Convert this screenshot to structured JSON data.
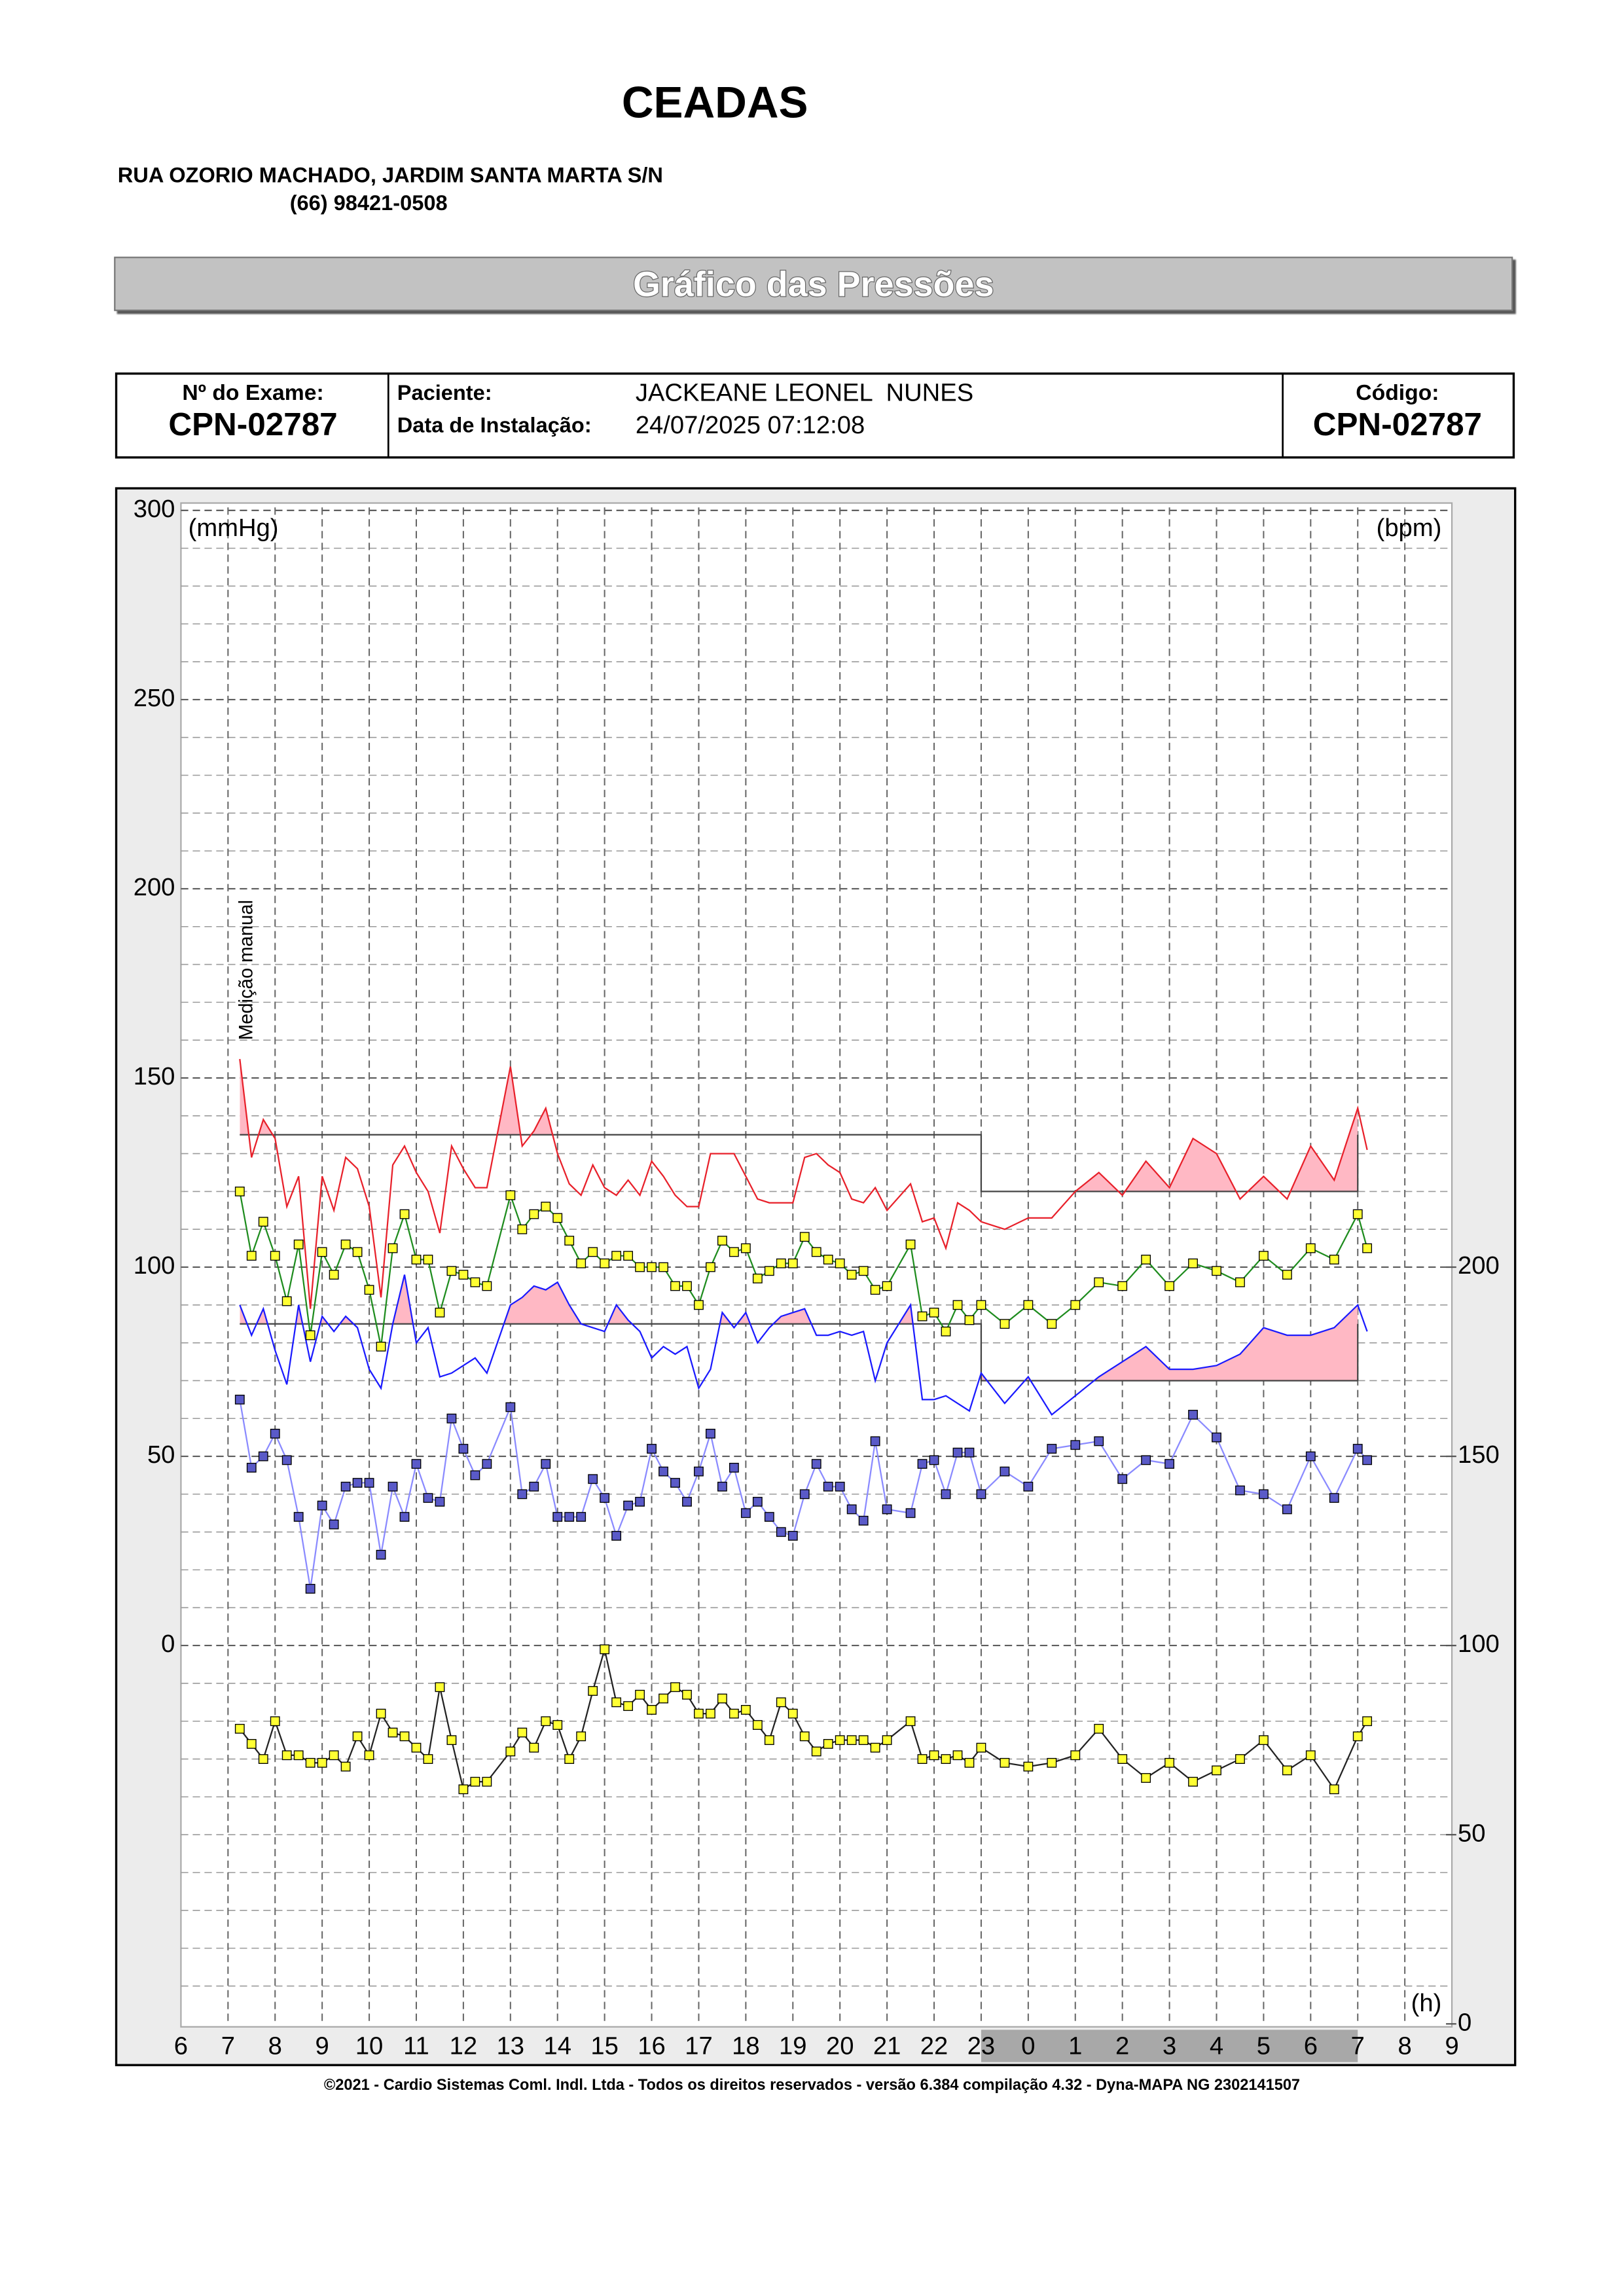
{
  "header": {
    "title": "CEADAS",
    "address": "RUA OZORIO MACHADO, JARDIM SANTA MARTA S/N",
    "phone": "(66) 98421-0508"
  },
  "banner": "Gráfico das Pressões",
  "info": {
    "exam_label": "Nº do Exame:",
    "exam": "CPN-02787",
    "patient_label": "Paciente:",
    "patient": "JACKEANE LEONEL  NUNES",
    "install_label": "Data de Instalação:",
    "install": "24/07/2025 07:12:08",
    "code_label": "Código:",
    "code": "CPN-02787"
  },
  "footer": "©2021 - Cardio Sistemas Coml. Indl. Ltda - Todos os direitos reservados - versão 6.384 compilação 4.32 - Dyna-MAPA NG 2302141507",
  "chart_data": {
    "type": "line",
    "y_label": "(mmHg)",
    "y2_label": "(bpm)",
    "x_label": "(h)",
    "xlim": [
      6,
      33
    ],
    "xticks": [
      6,
      7,
      8,
      9,
      10,
      11,
      12,
      13,
      14,
      15,
      16,
      17,
      18,
      19,
      20,
      21,
      22,
      23,
      {
        "value": 24,
        "label": "0"
      },
      {
        "value": 25,
        "label": "1"
      },
      {
        "value": 26,
        "label": "2"
      },
      {
        "value": 27,
        "label": "3"
      },
      {
        "value": 28,
        "label": "4"
      },
      {
        "value": 29,
        "label": "5"
      },
      {
        "value": 30,
        "label": "6"
      },
      {
        "value": 31,
        "label": "7"
      },
      {
        "value": 32,
        "label": "8"
      },
      {
        "value": 33,
        "label": "9"
      }
    ],
    "ylim": [
      -100,
      300
    ],
    "yticks": [
      0,
      50,
      100,
      150,
      200,
      250,
      300
    ],
    "ygrid_step": 10,
    "y2lim": [
      0,
      400
    ],
    "y2ticks": [
      0,
      50,
      100,
      150,
      200
    ],
    "grid": true,
    "night_period": [
      23,
      31
    ],
    "day_period": [
      7.25,
      23
    ],
    "fill_color": "#ffb8c4",
    "limit_color": "#444444",
    "annotations": [
      {
        "x": 7.25,
        "text": "Medição manual"
      }
    ],
    "x": [
      7.25,
      7.5,
      7.75,
      8,
      8.25,
      8.5,
      8.75,
      9,
      9.25,
      9.5,
      9.75,
      10,
      10.25,
      10.5,
      10.75,
      11,
      11.25,
      11.5,
      11.75,
      12,
      12.25,
      12.5,
      13,
      13.25,
      13.5,
      13.75,
      14,
      14.25,
      14.5,
      14.75,
      15,
      15.25,
      15.5,
      15.75,
      16,
      16.25,
      16.5,
      16.75,
      17,
      17.25,
      17.5,
      17.75,
      18,
      18.25,
      18.5,
      18.75,
      19,
      19.25,
      19.5,
      19.75,
      20,
      20.25,
      20.5,
      20.75,
      21,
      21.5,
      21.75,
      22,
      22.25,
      22.5,
      22.75,
      23,
      23.5,
      24,
      24.5,
      25,
      25.5,
      26,
      26.5,
      27,
      27.5,
      28,
      28.5,
      29,
      29.5,
      30,
      30.5,
      31,
      31.2
    ],
    "series": [
      {
        "color": "#e8202a",
        "limit": {
          "day": 135,
          "night": 120
        },
        "values": [
          155,
          129,
          139,
          134,
          116,
          124,
          89,
          124,
          115,
          129,
          126,
          116,
          92,
          127,
          132,
          125,
          120,
          109,
          132,
          126,
          121,
          121,
          153,
          132,
          136,
          142,
          130,
          122,
          119,
          127,
          121,
          119,
          123,
          119,
          128,
          124,
          119,
          116,
          116,
          130,
          130,
          130,
          124,
          118,
          117,
          117,
          117,
          129,
          130,
          127,
          125,
          118,
          117,
          121,
          115,
          122,
          112,
          113,
          105,
          117,
          115,
          112,
          110,
          113,
          113,
          120,
          125,
          119,
          128,
          121,
          134,
          130,
          118,
          124,
          118,
          132,
          123,
          142,
          131
        ]
      },
      {
        "color": "#1a1aff",
        "limit": {
          "day": 85,
          "night": 70
        },
        "values": [
          90,
          82,
          89,
          78,
          69,
          90,
          75,
          87,
          83,
          87,
          84,
          73,
          68,
          85,
          98,
          80,
          84,
          71,
          72,
          74,
          76,
          72,
          90,
          92,
          95,
          94,
          96,
          90,
          85,
          84,
          83,
          90,
          86,
          83,
          76,
          79,
          77,
          79,
          68,
          73,
          88,
          84,
          88,
          80,
          84,
          87,
          88,
          89,
          82,
          82,
          83,
          82,
          83,
          70,
          80,
          90,
          65,
          65,
          66,
          64,
          62,
          72,
          64,
          71,
          61,
          66,
          71,
          75,
          79,
          73,
          73,
          74,
          77,
          84,
          82,
          82,
          84,
          90,
          83
        ]
      },
      {
        "color": "#1e8c1e",
        "marker_color": "#ffff33",
        "values": [
          120,
          103,
          112,
          103,
          91,
          106,
          82,
          104,
          98,
          106,
          104,
          94,
          79,
          105,
          114,
          102,
          102,
          88,
          99,
          98,
          96,
          95,
          119,
          110,
          114,
          116,
          113,
          107,
          101,
          104,
          101,
          103,
          103,
          100,
          100,
          100,
          95,
          95,
          90,
          100,
          107,
          104,
          105,
          97,
          99,
          101,
          101,
          108,
          104,
          102,
          101,
          98,
          99,
          94,
          95,
          106,
          87,
          88,
          83,
          90,
          86,
          90,
          85,
          90,
          85,
          90,
          96,
          95,
          102,
          95,
          101,
          99,
          96,
          103,
          98,
          105,
          102,
          114,
          105
        ]
      },
      {
        "color": "#8a8aff",
        "marker_color": "#5a5ac8",
        "values": [
          65,
          47,
          50,
          56,
          49,
          34,
          15,
          37,
          32,
          42,
          43,
          43,
          24,
          42,
          34,
          48,
          39,
          38,
          60,
          52,
          45,
          48,
          63,
          40,
          42,
          48,
          34,
          34,
          34,
          44,
          39,
          29,
          37,
          38,
          52,
          46,
          43,
          38,
          46,
          56,
          42,
          47,
          35,
          38,
          34,
          30,
          29,
          40,
          48,
          42,
          42,
          36,
          33,
          54,
          36,
          35,
          48,
          49,
          40,
          51,
          51,
          40,
          46,
          42,
          52,
          53,
          54,
          44,
          49,
          48,
          61,
          55,
          41,
          40,
          36,
          50,
          39,
          52,
          49
        ]
      },
      {
        "color": "#222222",
        "marker_color": "#ffff33",
        "axis": "y2",
        "values": [
          78,
          74,
          70,
          80,
          71,
          71,
          69,
          69,
          71,
          68,
          76,
          71,
          82,
          77,
          76,
          73,
          70,
          89,
          75,
          62,
          64,
          64,
          72,
          77,
          73,
          80,
          79,
          70,
          76,
          88,
          99,
          85,
          84,
          87,
          83,
          86,
          89,
          87,
          82,
          82,
          86,
          82,
          83,
          79,
          75,
          85,
          82,
          76,
          72,
          74,
          75,
          75,
          75,
          73,
          75,
          80,
          70,
          71,
          70,
          71,
          69,
          73,
          69,
          68,
          69,
          71,
          78,
          70,
          65,
          69,
          64,
          67,
          70,
          75,
          67,
          71,
          62,
          76,
          80
        ]
      }
    ]
  }
}
